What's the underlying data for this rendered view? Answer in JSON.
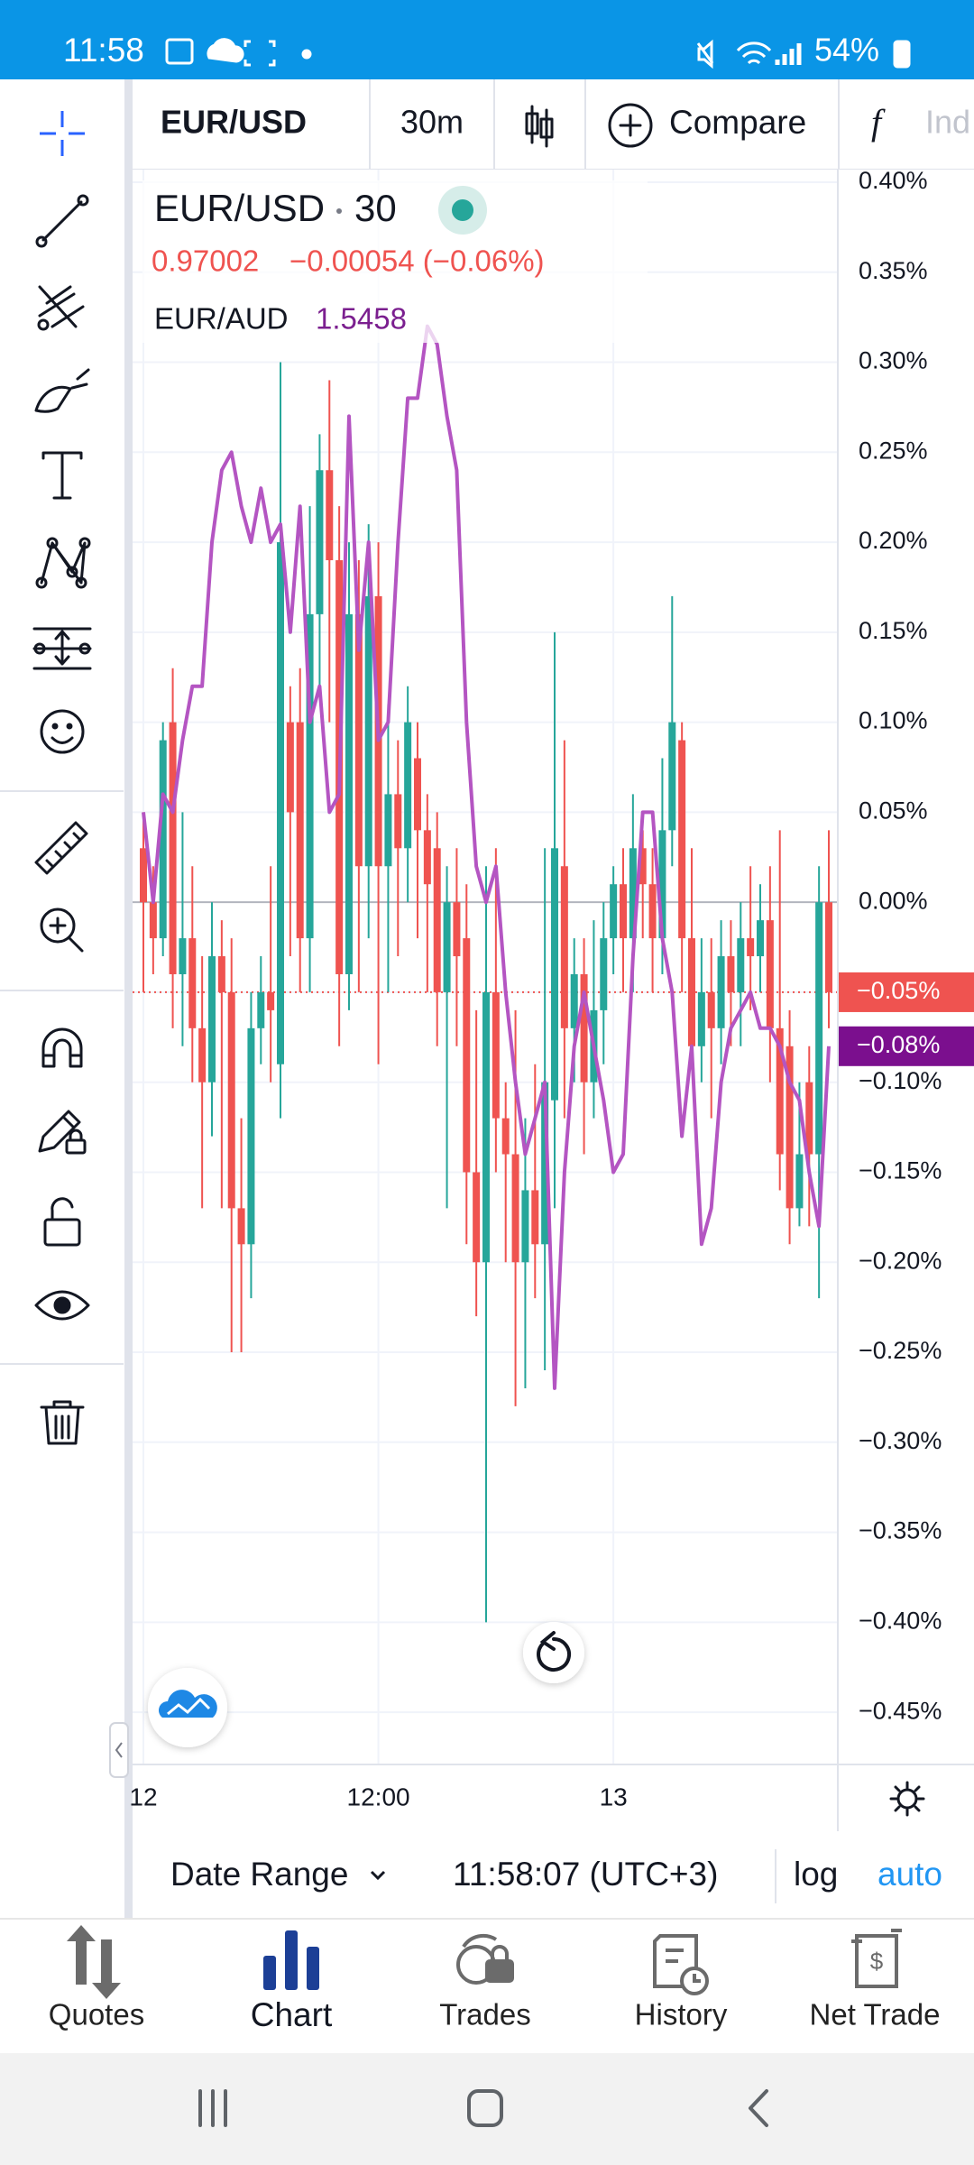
{
  "status_bar": {
    "time": "11:58",
    "battery": "54%"
  },
  "toolbar": {
    "symbol": "EUR/USD",
    "interval": "30m",
    "compare": "Compare",
    "indicators": "Ind"
  },
  "chart_data": {
    "type": "candlestick",
    "legend": {
      "interval": "30",
      "price": "0.97002",
      "change": "−0.00054 (−0.06%)",
      "compare_price": "1.5458"
    },
    "categories": [
      "12",
      null,
      null,
      null,
      null,
      null,
      null,
      null,
      null,
      null,
      null,
      null,
      null,
      null,
      null,
      null,
      null,
      null,
      null,
      null,
      null,
      null,
      null,
      null,
      "12:00",
      null,
      null,
      null,
      null,
      null,
      null,
      null,
      null,
      null,
      null,
      null,
      null,
      null,
      null,
      null,
      null,
      null,
      null,
      null,
      null,
      null,
      null,
      null,
      "13",
      null,
      null,
      null,
      null,
      null,
      null,
      null,
      null,
      null,
      null,
      null,
      null,
      null,
      null,
      null,
      null,
      null,
      null,
      null,
      null,
      null,
      null
    ],
    "ylim": [
      -0.479,
      0.407
    ],
    "yticks": [
      {
        "value": 0.4,
        "label": "0.40%"
      },
      {
        "value": 0.35,
        "label": "0.35%"
      },
      {
        "value": 0.3,
        "label": "0.30%"
      },
      {
        "value": 0.25,
        "label": "0.25%"
      },
      {
        "value": 0.2,
        "label": "0.20%"
      },
      {
        "value": 0.15,
        "label": "0.15%"
      },
      {
        "value": 0.1,
        "label": "0.10%"
      },
      {
        "value": 0.05,
        "label": "0.05%"
      },
      {
        "value": 0,
        "label": "0.00%"
      },
      {
        "value": -0.05,
        "label": "−0.05%"
      },
      {
        "value": -0.1,
        "label": "−0.10%"
      },
      {
        "value": -0.15,
        "label": "−0.15%"
      },
      {
        "value": -0.2,
        "label": "−0.20%"
      },
      {
        "value": -0.25,
        "label": "−0.25%"
      },
      {
        "value": -0.3,
        "label": "−0.30%"
      },
      {
        "value": -0.35,
        "label": "−0.35%"
      },
      {
        "value": -0.4,
        "label": "−0.40%"
      },
      {
        "value": -0.45,
        "label": "−0.45%"
      }
    ],
    "grid": true,
    "series": [
      {
        "name": "EUR/USD",
        "type": "candlestick",
        "up_color": "#26a69a",
        "down_color": "#ef5350",
        "open": [
          0.03,
          0.0,
          -0.02,
          0.1,
          -0.04,
          -0.02,
          -0.07,
          -0.1,
          -0.03,
          -0.05,
          -0.17,
          -0.19,
          -0.07,
          -0.05,
          -0.09,
          0.1,
          0.1,
          -0.02,
          0.16,
          0.24,
          0.19,
          -0.04,
          0.16,
          0.02,
          0.17,
          0.02,
          0.06,
          0.03,
          0.08,
          0.04,
          0.03,
          -0.05,
          0.0,
          -0.02,
          -0.15,
          -0.2,
          -0.05,
          -0.12,
          -0.14,
          -0.2,
          -0.16,
          -0.19,
          -0.11,
          0.02,
          -0.07,
          -0.04,
          -0.1,
          -0.06,
          -0.02,
          0.01,
          -0.02,
          0.03,
          0.01,
          -0.02,
          0.04,
          0.09,
          -0.02,
          -0.08,
          -0.05,
          -0.07,
          -0.03,
          -0.05,
          -0.02,
          -0.03,
          -0.01,
          -0.07,
          -0.08,
          -0.17,
          -0.1,
          -0.14,
          0.0
        ],
        "high": [
          0.05,
          0.02,
          0.1,
          0.13,
          0.05,
          0.02,
          -0.03,
          0.0,
          -0.01,
          -0.02,
          -0.12,
          -0.05,
          -0.03,
          0.02,
          0.3,
          0.12,
          0.13,
          0.22,
          0.26,
          0.29,
          0.22,
          0.2,
          0.19,
          0.21,
          0.2,
          0.11,
          0.09,
          0.12,
          0.1,
          0.06,
          0.05,
          0.02,
          0.03,
          0.01,
          -0.06,
          0.02,
          0.03,
          -0.1,
          -0.06,
          -0.12,
          -0.09,
          0.03,
          0.15,
          0.09,
          -0.02,
          -0.02,
          -0.01,
          0.0,
          0.02,
          0.03,
          0.06,
          0.04,
          0.03,
          0.08,
          0.17,
          0.1,
          0.03,
          -0.02,
          -0.02,
          -0.01,
          -0.01,
          0.0,
          0.02,
          0.01,
          0.02,
          0.04,
          -0.06,
          -0.1,
          -0.08,
          0.02,
          0.04
        ],
        "low": [
          -0.05,
          -0.04,
          -0.03,
          -0.07,
          -0.08,
          -0.1,
          -0.17,
          -0.13,
          -0.17,
          -0.25,
          -0.25,
          -0.22,
          -0.09,
          -0.1,
          -0.12,
          -0.03,
          -0.05,
          -0.05,
          0.12,
          0.1,
          -0.08,
          -0.06,
          -0.05,
          -0.02,
          -0.09,
          -0.05,
          -0.03,
          0.0,
          -0.02,
          -0.05,
          -0.08,
          -0.17,
          -0.08,
          -0.19,
          -0.23,
          -0.4,
          -0.15,
          -0.2,
          -0.28,
          -0.27,
          -0.22,
          -0.26,
          -0.17,
          -0.12,
          -0.1,
          -0.14,
          -0.12,
          -0.09,
          -0.04,
          -0.05,
          -0.05,
          -0.02,
          -0.05,
          -0.04,
          0.02,
          -0.05,
          -0.09,
          -0.1,
          -0.12,
          -0.09,
          -0.08,
          -0.08,
          -0.06,
          -0.05,
          -0.1,
          -0.16,
          -0.19,
          -0.18,
          -0.18,
          -0.22,
          -0.07
        ],
        "close": [
          0.0,
          -0.02,
          0.09,
          -0.04,
          -0.02,
          -0.07,
          -0.1,
          -0.03,
          -0.05,
          -0.17,
          -0.19,
          -0.07,
          -0.05,
          -0.06,
          0.2,
          0.05,
          -0.02,
          0.16,
          0.24,
          0.19,
          -0.04,
          0.16,
          0.02,
          0.17,
          0.02,
          0.06,
          0.03,
          0.1,
          0.04,
          0.01,
          -0.05,
          0.0,
          -0.03,
          -0.15,
          -0.2,
          -0.05,
          -0.12,
          -0.14,
          -0.2,
          -0.16,
          -0.19,
          -0.1,
          0.03,
          -0.07,
          -0.04,
          -0.1,
          -0.06,
          -0.02,
          0.01,
          -0.02,
          0.03,
          0.01,
          -0.02,
          0.04,
          0.1,
          -0.02,
          -0.08,
          -0.05,
          -0.07,
          -0.03,
          -0.05,
          -0.02,
          -0.03,
          -0.01,
          -0.07,
          -0.14,
          -0.17,
          -0.14,
          -0.14,
          0.0,
          -0.05
        ],
        "last_label": {
          "value": -0.05,
          "label": "−0.05%"
        }
      },
      {
        "name": "EUR/AUD",
        "type": "line",
        "color": "#b455c2",
        "label_color": "#7b0f8e",
        "values": [
          0.05,
          0.0,
          0.06,
          0.05,
          0.09,
          0.12,
          0.12,
          0.2,
          0.24,
          0.25,
          0.22,
          0.2,
          0.23,
          0.2,
          0.21,
          0.15,
          0.22,
          0.1,
          0.12,
          0.05,
          0.06,
          0.27,
          0.14,
          0.2,
          0.09,
          0.1,
          0.2,
          0.28,
          0.28,
          0.32,
          0.31,
          0.27,
          0.24,
          0.1,
          0.02,
          0.0,
          0.02,
          -0.05,
          -0.1,
          -0.14,
          -0.12,
          -0.1,
          -0.27,
          -0.15,
          -0.08,
          -0.05,
          -0.08,
          -0.11,
          -0.15,
          -0.14,
          -0.03,
          0.05,
          0.05,
          -0.02,
          -0.05,
          -0.13,
          -0.08,
          -0.19,
          -0.17,
          -0.1,
          -0.07,
          -0.06,
          -0.05,
          -0.07,
          -0.07,
          -0.08,
          -0.1,
          -0.11,
          -0.15,
          -0.18,
          -0.08
        ],
        "last_label": {
          "value": -0.08,
          "label": "−0.08%"
        }
      }
    ]
  },
  "footer": {
    "date_range": "Date Range",
    "time": "11:58:07 (UTC+3)",
    "log": "log",
    "auto": "auto"
  },
  "tabs": [
    "Quotes",
    "Chart",
    "Trades",
    "History",
    "Net Trade"
  ]
}
